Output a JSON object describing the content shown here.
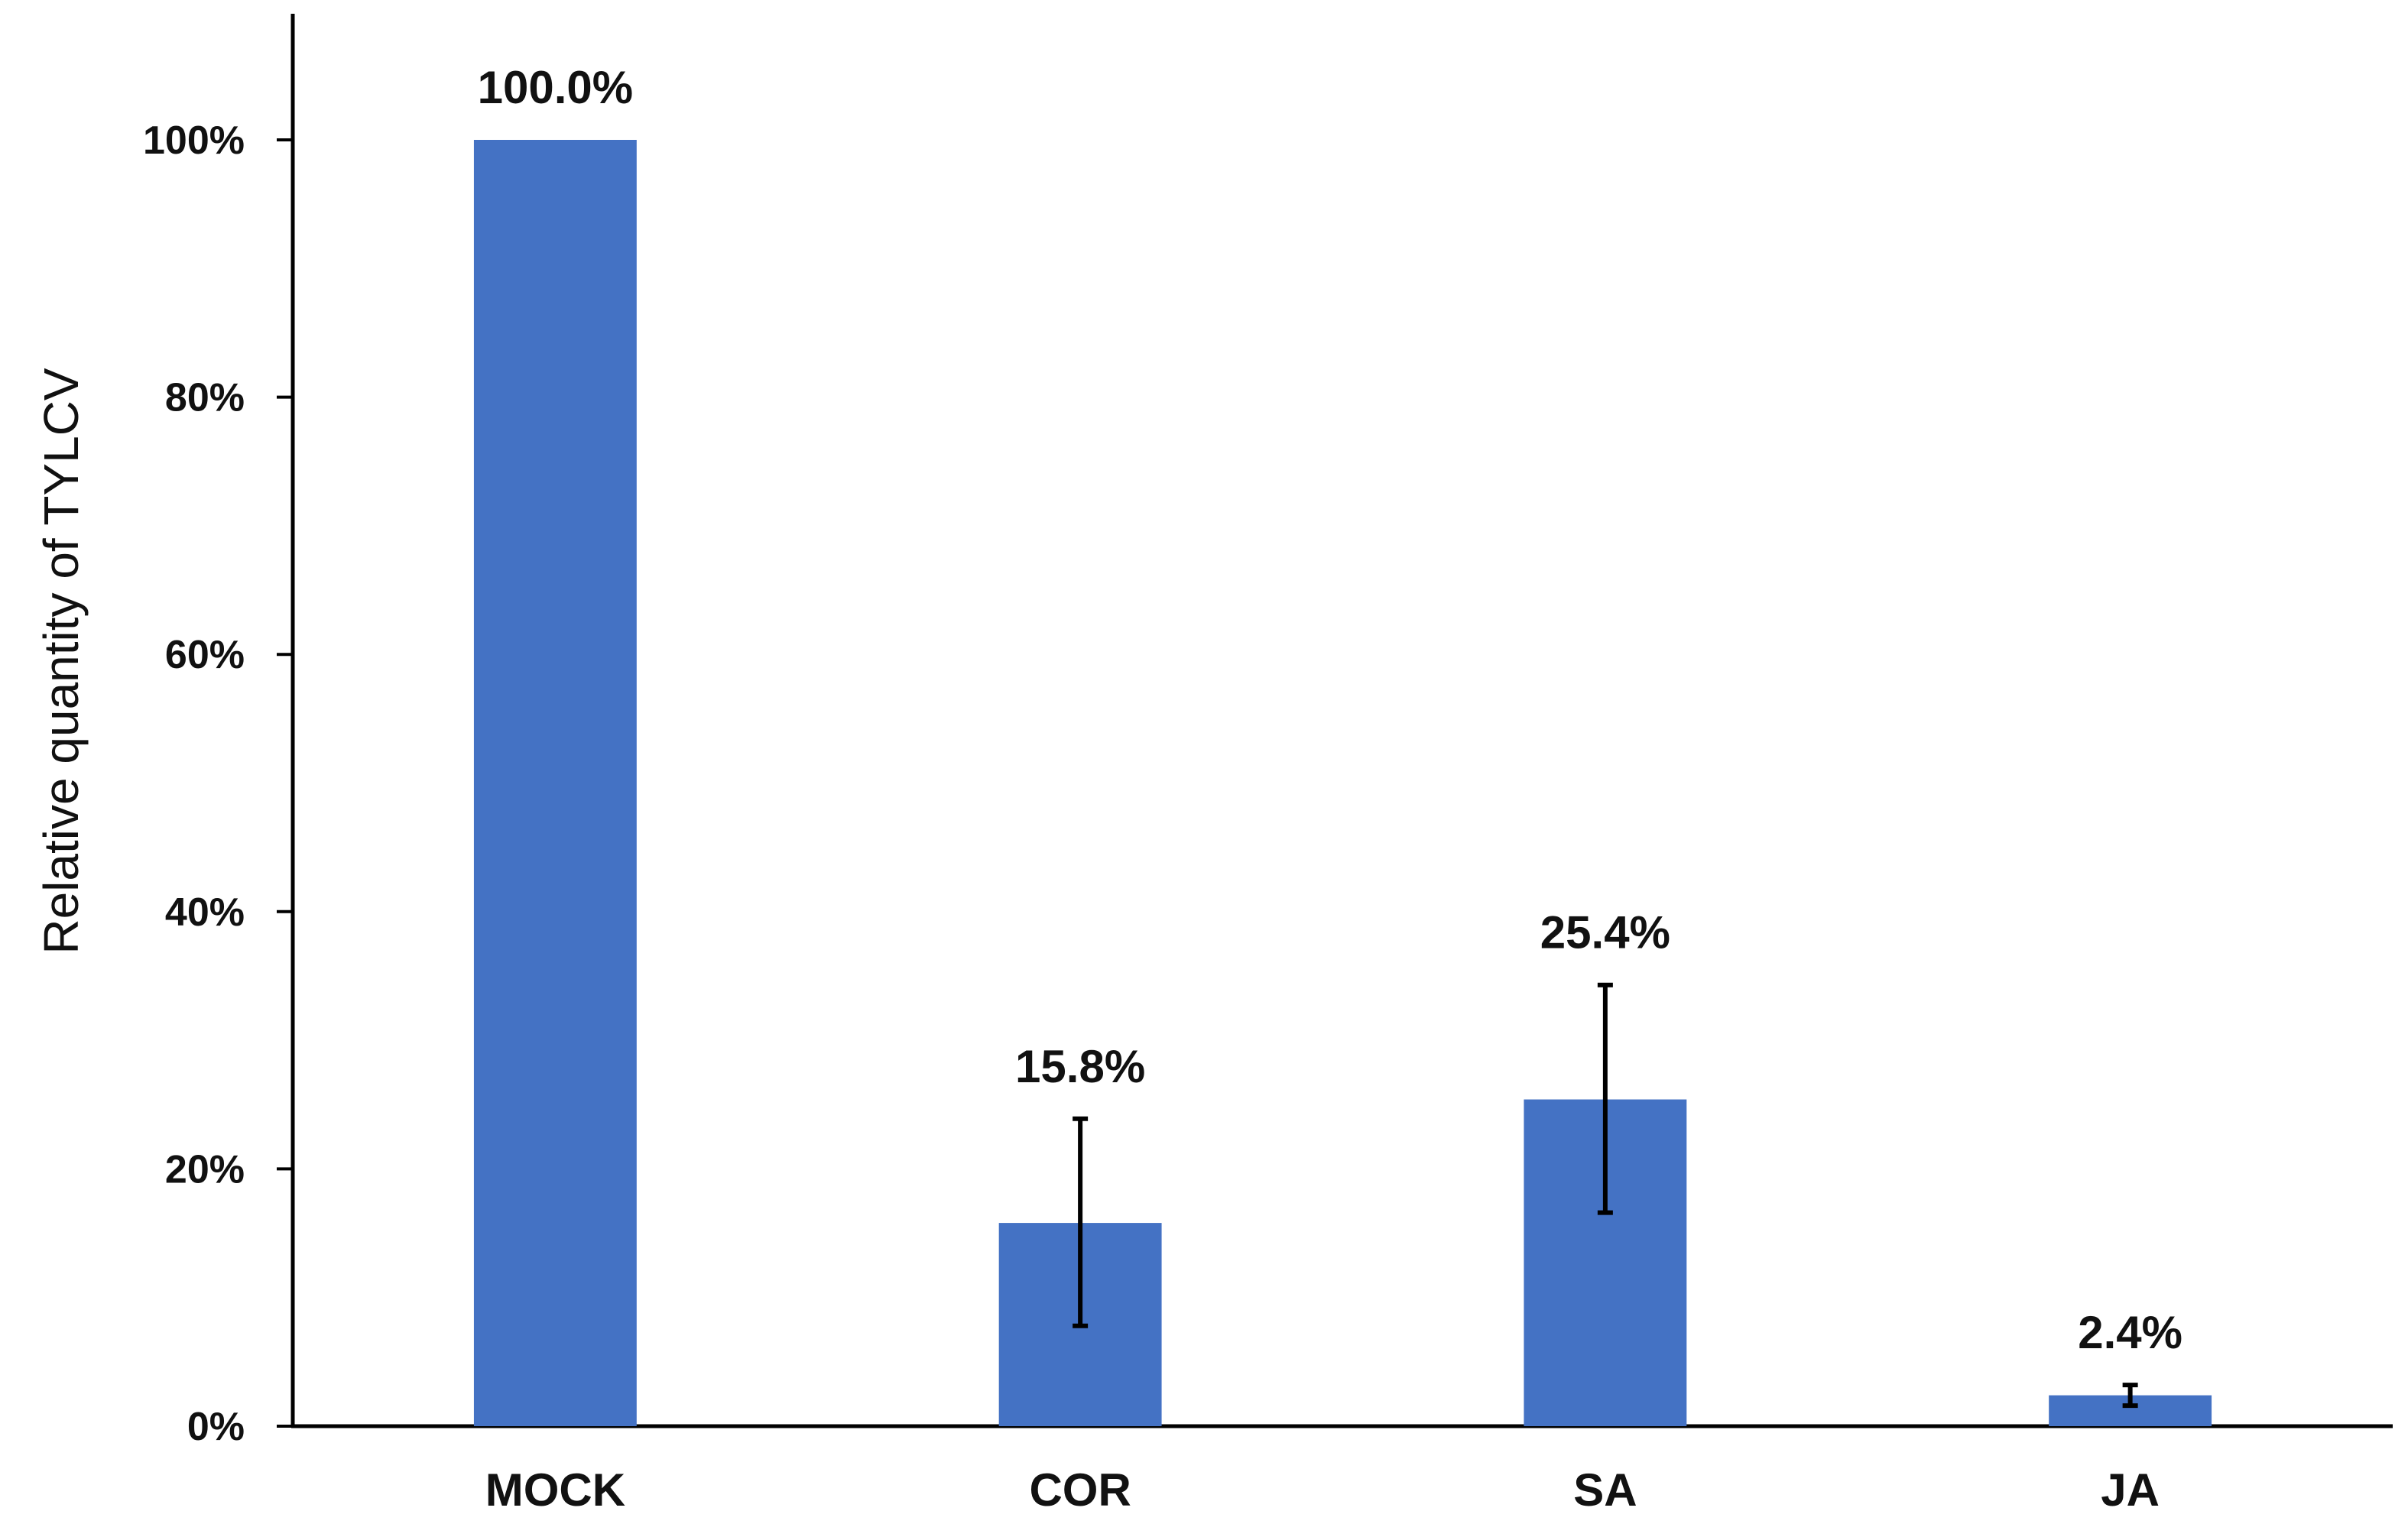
{
  "chart_data": {
    "type": "bar",
    "title": "",
    "xlabel": "",
    "ylabel": "Relative quantity of TYLCV",
    "ylim": [
      0,
      110
    ],
    "yticks": [
      0,
      20,
      40,
      60,
      80,
      100
    ],
    "ytick_labels": [
      "0%",
      "20%",
      "40%",
      "60%",
      "80%",
      "100%"
    ],
    "categories": [
      "MOCK",
      "COR",
      "SA",
      "JA"
    ],
    "values": [
      100.0,
      15.8,
      25.4,
      2.4
    ],
    "data_labels": [
      "100.0%",
      "15.8%",
      "25.4%",
      "2.4%"
    ],
    "error_low": [
      null,
      7.8,
      16.6,
      1.6
    ],
    "error_high": [
      null,
      23.9,
      34.3,
      3.2
    ],
    "bar_color": "#4472C4",
    "grid": false,
    "legend": "none"
  }
}
